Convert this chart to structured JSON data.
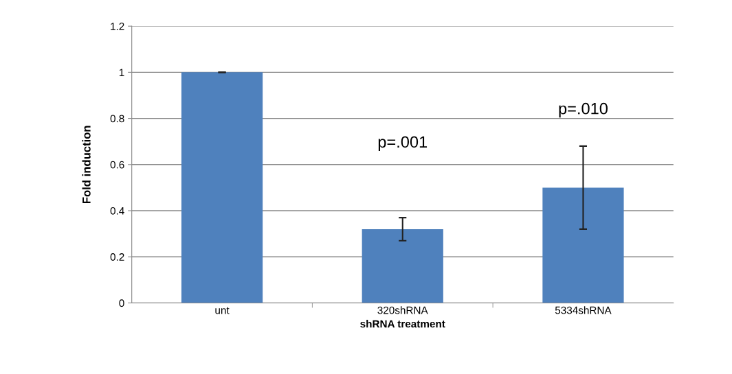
{
  "chart_data": {
    "type": "bar",
    "xlabel": "shRNA treatment",
    "ylabel": "Fold induction",
    "categories": [
      "unt",
      "320shRNA",
      "5334shRNA"
    ],
    "values": [
      1.0,
      0.32,
      0.5
    ],
    "errors": [
      0.0,
      0.05,
      0.18
    ],
    "color": "#4f81bd",
    "ylim": [
      0,
      1.2
    ],
    "yticks": [
      0,
      0.2,
      0.4,
      0.6,
      0.8,
      1,
      1.2
    ],
    "grid": "y",
    "annotations": [
      "p=.001",
      "p=.010"
    ]
  }
}
